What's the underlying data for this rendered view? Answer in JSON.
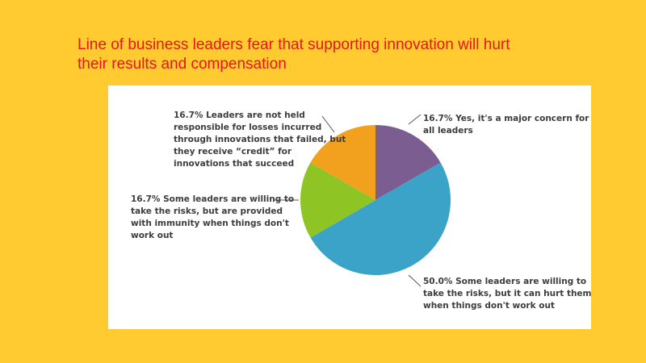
{
  "title": {
    "line1": "Line of business leaders fear that supporting innovation will hurt",
    "line2": "their results and compensation"
  },
  "chart_data": {
    "type": "pie",
    "slices": [
      {
        "label_lines": [
          "16.7% Yes, it's a major concern for",
          "all leaders"
        ],
        "value": 16.7,
        "color": "#7B5D91"
      },
      {
        "label_lines": [
          "50.0% Some leaders are willing to",
          "take the risks, but it can hurt them",
          "when things don't work out"
        ],
        "value": 50.0,
        "color": "#3BA3C7"
      },
      {
        "label_lines": [
          "16.7% Some leaders are willing to",
          "take the risks, but are provided",
          "with immunity when things don't",
          "work out"
        ],
        "value": 16.7,
        "color": "#8EC524"
      },
      {
        "label_lines": [
          "16.7% Leaders are not held",
          "responsible for losses incurred",
          "through innovations that failed, but",
          "they receive “credit” for",
          "innovations that succeed"
        ],
        "value": 16.7,
        "color": "#F2A11E"
      }
    ]
  }
}
